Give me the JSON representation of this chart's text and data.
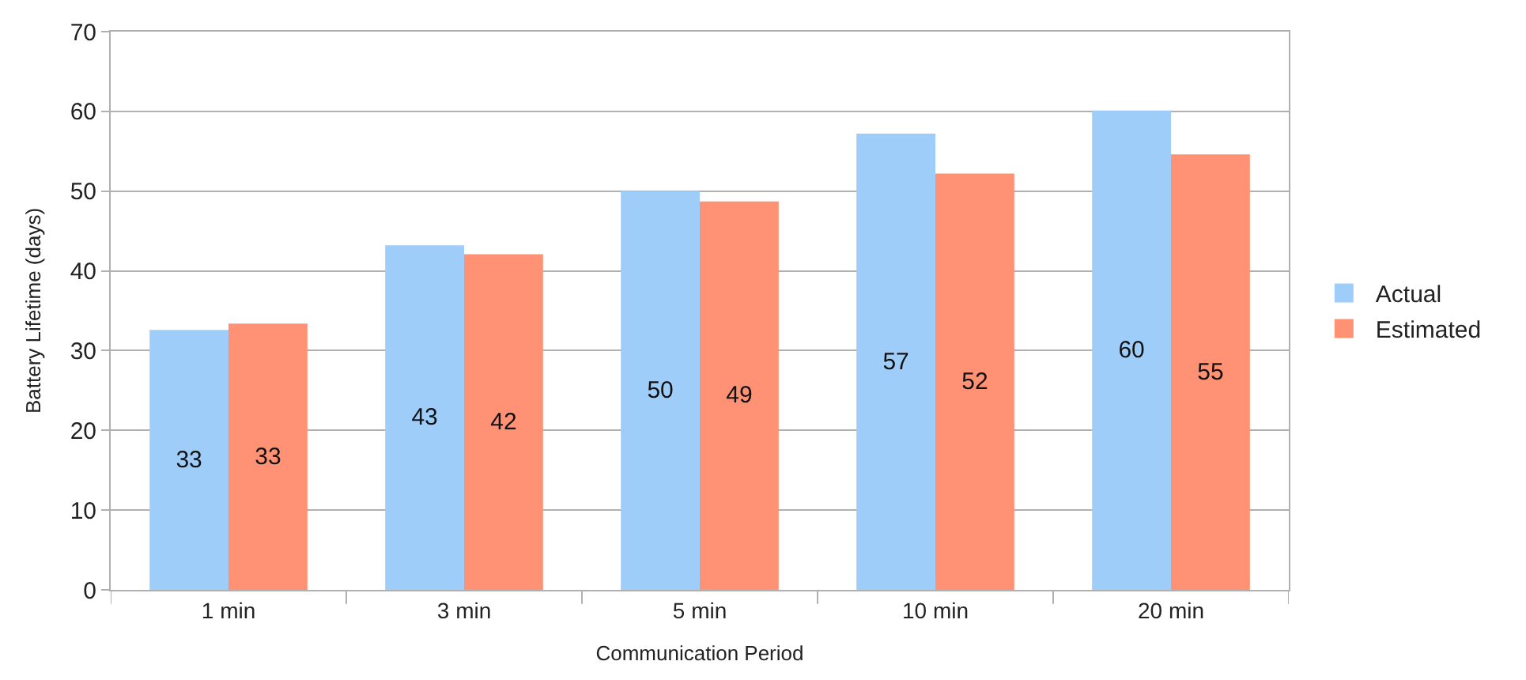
{
  "chart_data": {
    "type": "bar",
    "xlabel": "Communication Period",
    "ylabel": "Battery Lifetime (days)",
    "categories": [
      "1 min",
      "3 min",
      "5 min",
      "10 min",
      "20 min"
    ],
    "series": [
      {
        "name": "Actual",
        "color": "#9fcdfa",
        "values": [
          32.6,
          43.2,
          50.0,
          57.2,
          60.1
        ],
        "value_labels": [
          "33",
          "43",
          "50",
          "57",
          "60"
        ]
      },
      {
        "name": "Estimated",
        "color": "#ff9274",
        "values": [
          33.4,
          42.1,
          48.7,
          52.2,
          54.6
        ],
        "value_labels": [
          "33",
          "42",
          "49",
          "52",
          "55"
        ]
      }
    ],
    "ylim": [
      0,
      70
    ],
    "yticks": [
      0,
      10,
      20,
      30,
      40,
      50,
      60,
      70
    ],
    "grid": "y",
    "legend": "right"
  }
}
